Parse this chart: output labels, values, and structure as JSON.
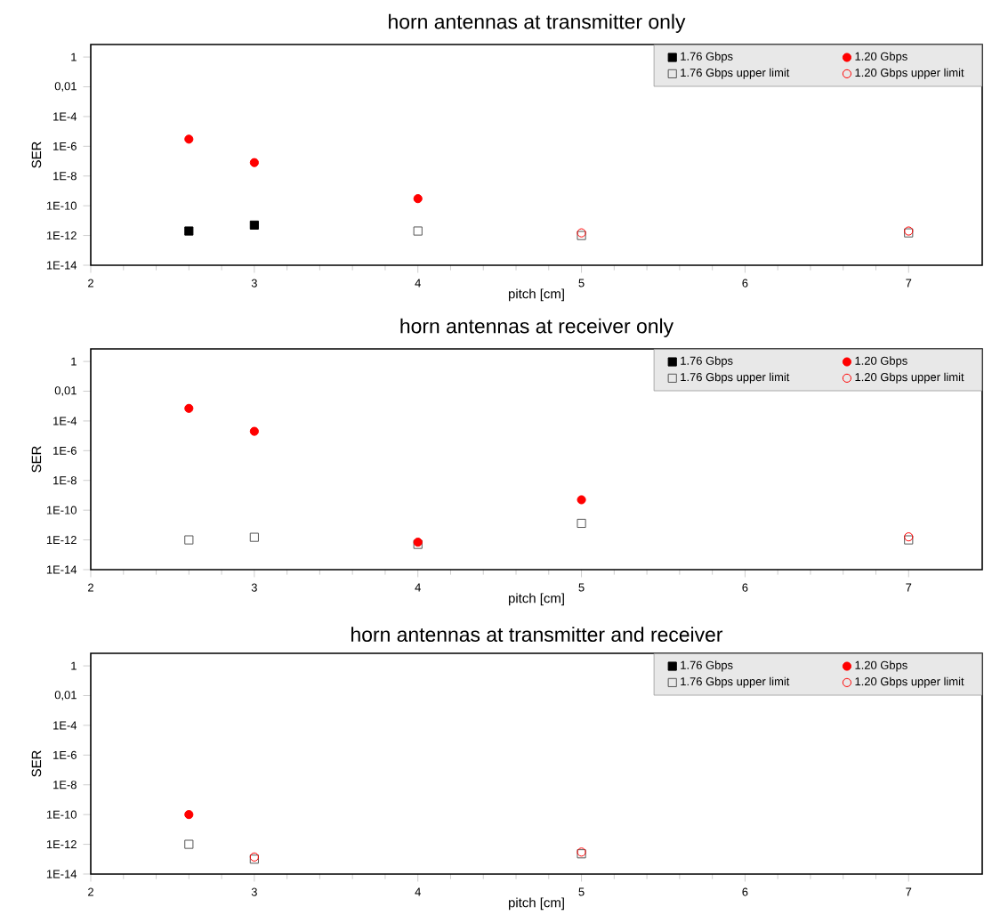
{
  "chart_data": [
    {
      "type": "scatter",
      "title": "horn antennas at transmitter only",
      "xlabel": "pitch [cm]",
      "ylabel": "SER",
      "log": "y",
      "xlim": [
        2,
        7.45
      ],
      "xticks": [
        2,
        3,
        4,
        5,
        6,
        7
      ],
      "ylim": [
        1e-14,
        7
      ],
      "yticks": [
        {
          "value": 1e-14,
          "label": "1E-14"
        },
        {
          "value": 1e-12,
          "label": "1E-12"
        },
        {
          "value": 1e-10,
          "label": "1E-10"
        },
        {
          "value": 1e-08,
          "label": "1E-8"
        },
        {
          "value": 1e-06,
          "label": "1E-6"
        },
        {
          "value": 0.0001,
          "label": "1E-4"
        },
        {
          "value": 0.01,
          "label": "0,01"
        },
        1
      ],
      "grid": false,
      "legend": "top right",
      "series": [
        {
          "name": "1.76 Gbps",
          "color": "#000000",
          "marker": "square",
          "x": [
            2.6,
            3
          ],
          "values": [
            2e-12,
            5e-12
          ]
        },
        {
          "name": "1.76 Gbps upper limit",
          "color": "#555555",
          "marker": "square-open",
          "x": [
            4,
            5,
            7
          ],
          "values": [
            2e-12,
            1e-12,
            1.5e-12
          ]
        },
        {
          "name": "1.20 Gbps",
          "color": "#ff0000",
          "marker": "circle",
          "x": [
            2.6,
            3,
            4
          ],
          "values": [
            3e-06,
            8e-08,
            3e-10
          ]
        },
        {
          "name": "1.20 Gbps upper limit",
          "color": "#ff0000",
          "marker": "circle-open",
          "x": [
            5,
            7
          ],
          "values": [
            1.5e-12,
            2e-12
          ]
        }
      ]
    },
    {
      "type": "scatter",
      "title": "horn antennas at receiver only",
      "xlabel": "pitch [cm]",
      "ylabel": "SER",
      "log": "y",
      "xlim": [
        2,
        7.45
      ],
      "xticks": [
        2,
        3,
        4,
        5,
        6,
        7
      ],
      "ylim": [
        1e-14,
        7
      ],
      "yticks": [
        {
          "value": 1e-14,
          "label": "1E-14"
        },
        {
          "value": 1e-12,
          "label": "1E-12"
        },
        {
          "value": 1e-10,
          "label": "1E-10"
        },
        {
          "value": 1e-08,
          "label": "1E-8"
        },
        {
          "value": 1e-06,
          "label": "1E-6"
        },
        {
          "value": 0.0001,
          "label": "1E-4"
        },
        {
          "value": 0.01,
          "label": "0,01"
        },
        1
      ],
      "grid": false,
      "legend": "top right",
      "series": [
        {
          "name": "1.76 Gbps",
          "color": "#000000",
          "marker": "square"
        },
        {
          "name": "1.76 Gbps upper limit",
          "color": "#555555",
          "marker": "square-open",
          "x": [
            2.6,
            3,
            4,
            5,
            7
          ],
          "values": [
            1e-12,
            1.5e-12,
            5e-13,
            1.3e-11,
            1e-12
          ]
        },
        {
          "name": "1.20 Gbps",
          "color": "#ff0000",
          "marker": "circle",
          "x": [
            2.6,
            3,
            4,
            5
          ],
          "values": [
            0.0007,
            2e-05,
            7e-13,
            5e-10
          ]
        },
        {
          "name": "1.20 Gbps upper limit",
          "color": "#ff0000",
          "marker": "circle-open",
          "x": [
            7
          ],
          "values": [
            1.6e-12
          ]
        }
      ]
    },
    {
      "type": "scatter",
      "title": "horn antennas at transmitter and receiver",
      "xlabel": "pitch [cm]",
      "ylabel": "SER",
      "log": "y",
      "xlim": [
        2,
        7.45
      ],
      "xticks": [
        2,
        3,
        4,
        5,
        6,
        7
      ],
      "ylim": [
        1e-14,
        7
      ],
      "yticks": [
        {
          "value": 1e-14,
          "label": "1E-14"
        },
        {
          "value": 1e-12,
          "label": "1E-12"
        },
        {
          "value": 1e-10,
          "label": "1E-10"
        },
        {
          "value": 1e-08,
          "label": "1E-8"
        },
        {
          "value": 1e-06,
          "label": "1E-6"
        },
        {
          "value": 0.0001,
          "label": "1E-4"
        },
        {
          "value": 0.01,
          "label": "0,01"
        },
        1
      ],
      "grid": false,
      "legend": "top right",
      "series": [
        {
          "name": "1.76 Gbps",
          "color": "#000000",
          "marker": "square"
        },
        {
          "name": "1.76 Gbps upper limit",
          "color": "#555555",
          "marker": "square-open",
          "x": [
            2.6,
            3,
            5
          ],
          "values": [
            1e-12,
            1e-13,
            2.3e-13
          ]
        },
        {
          "name": "1.20 Gbps",
          "color": "#ff0000",
          "marker": "circle",
          "x": [
            2.6
          ],
          "values": [
            1e-10
          ]
        },
        {
          "name": "1.20 Gbps upper limit",
          "color": "#ff0000",
          "marker": "circle-open",
          "x": [
            3,
            5
          ],
          "values": [
            1.4e-13,
            3e-13
          ]
        }
      ]
    }
  ]
}
